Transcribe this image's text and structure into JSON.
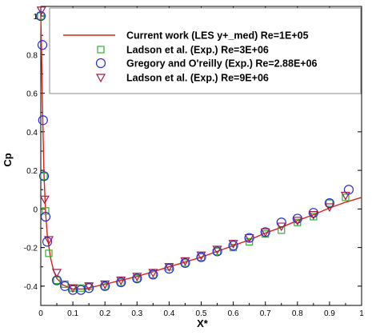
{
  "chart_data": {
    "type": "line",
    "xlabel": "X*",
    "ylabel": "Cp",
    "xlim": [
      0,
      1
    ],
    "ylim": [
      -0.5,
      1.05
    ],
    "y_reversed": true,
    "grid": false,
    "legend_position": "top-right",
    "x_ticks": [
      0,
      0.1,
      0.2,
      0.3,
      0.4,
      0.5,
      0.6,
      0.7,
      0.8,
      0.9,
      1
    ],
    "x_tick_labels": [
      "0",
      "0.1",
      "0.2",
      "0.3",
      "0.4",
      "0.5",
      "0.6",
      "0.7",
      "0.8",
      "0.9",
      "1"
    ],
    "y_ticks": [
      -0.4,
      -0.2,
      0,
      0.2,
      0.4,
      0.6,
      0.8,
      1
    ],
    "y_tick_labels": [
      "-0.4",
      "-0.2",
      "0",
      "0.2",
      "0.4",
      "0.6",
      "0.8",
      "1"
    ],
    "series": [
      {
        "name": "Current work (LES y+_med) Re=1E+05",
        "kind": "line",
        "color": "#e0201a",
        "x": [
          0,
          0.002,
          0.005,
          0.01,
          0.015,
          0.02,
          0.03,
          0.04,
          0.05,
          0.07,
          0.1,
          0.13,
          0.16,
          0.2,
          0.25,
          0.3,
          0.35,
          0.4,
          0.45,
          0.5,
          0.55,
          0.6,
          0.65,
          0.7,
          0.75,
          0.8,
          0.85,
          0.9,
          0.95,
          1.0
        ],
        "y": [
          1.0,
          0.85,
          0.55,
          0.18,
          -0.02,
          -0.13,
          -0.25,
          -0.32,
          -0.36,
          -0.395,
          -0.415,
          -0.415,
          -0.405,
          -0.39,
          -0.37,
          -0.35,
          -0.325,
          -0.3,
          -0.275,
          -0.25,
          -0.22,
          -0.19,
          -0.16,
          -0.125,
          -0.095,
          -0.06,
          -0.03,
          0.005,
          0.035,
          0.06
        ]
      },
      {
        "name": "Ladson et al. (Exp.) Re=3E+06",
        "kind": "marker",
        "marker": "square",
        "color": "#2bb52b",
        "x": [
          0.0,
          0.01,
          0.015,
          0.025,
          0.05,
          0.075,
          0.1,
          0.125,
          0.15,
          0.2,
          0.25,
          0.3,
          0.35,
          0.4,
          0.45,
          0.5,
          0.55,
          0.6,
          0.65,
          0.7,
          0.75,
          0.8,
          0.85,
          0.9,
          0.95
        ],
        "y": [
          1.0,
          0.17,
          -0.01,
          -0.23,
          -0.37,
          -0.39,
          -0.41,
          -0.41,
          -0.4,
          -0.4,
          -0.38,
          -0.36,
          -0.34,
          -0.3,
          -0.28,
          -0.25,
          -0.22,
          -0.2,
          -0.17,
          -0.13,
          -0.11,
          -0.07,
          -0.04,
          0.03,
          0.06
        ]
      },
      {
        "name": "Gregory and O'reilly (Exp.) Re=2.88E+06",
        "kind": "marker",
        "marker": "circle",
        "color": "#2a2ad8",
        "x": [
          0.0,
          0.005,
          0.007,
          0.01,
          0.015,
          0.02,
          0.05,
          0.075,
          0.1,
          0.125,
          0.15,
          0.2,
          0.25,
          0.3,
          0.35,
          0.4,
          0.45,
          0.5,
          0.55,
          0.6,
          0.65,
          0.7,
          0.75,
          0.8,
          0.85,
          0.9,
          0.96
        ],
        "y": [
          1.0,
          0.85,
          0.46,
          0.17,
          -0.04,
          -0.17,
          -0.37,
          -0.4,
          -0.42,
          -0.42,
          -0.41,
          -0.4,
          -0.38,
          -0.36,
          -0.34,
          -0.31,
          -0.28,
          -0.25,
          -0.22,
          -0.19,
          -0.15,
          -0.12,
          -0.07,
          -0.05,
          -0.02,
          0.03,
          0.1
        ]
      },
      {
        "name": "Ladson et al. (Exp.) Re=9E+06",
        "kind": "marker",
        "marker": "triangle-down",
        "color": "#a01a4a",
        "x": [
          0.002,
          0.012,
          0.025,
          0.05,
          0.1,
          0.15,
          0.2,
          0.25,
          0.3,
          0.35,
          0.4,
          0.45,
          0.5,
          0.55,
          0.6,
          0.65,
          0.7,
          0.75,
          0.8,
          0.85,
          0.9,
          0.95
        ],
        "y": [
          1.03,
          0.05,
          -0.16,
          -0.33,
          -0.41,
          -0.4,
          -0.39,
          -0.37,
          -0.35,
          -0.33,
          -0.3,
          -0.27,
          -0.24,
          -0.21,
          -0.18,
          -0.15,
          -0.12,
          -0.09,
          -0.06,
          -0.03,
          0.01,
          0.07
        ]
      }
    ]
  }
}
